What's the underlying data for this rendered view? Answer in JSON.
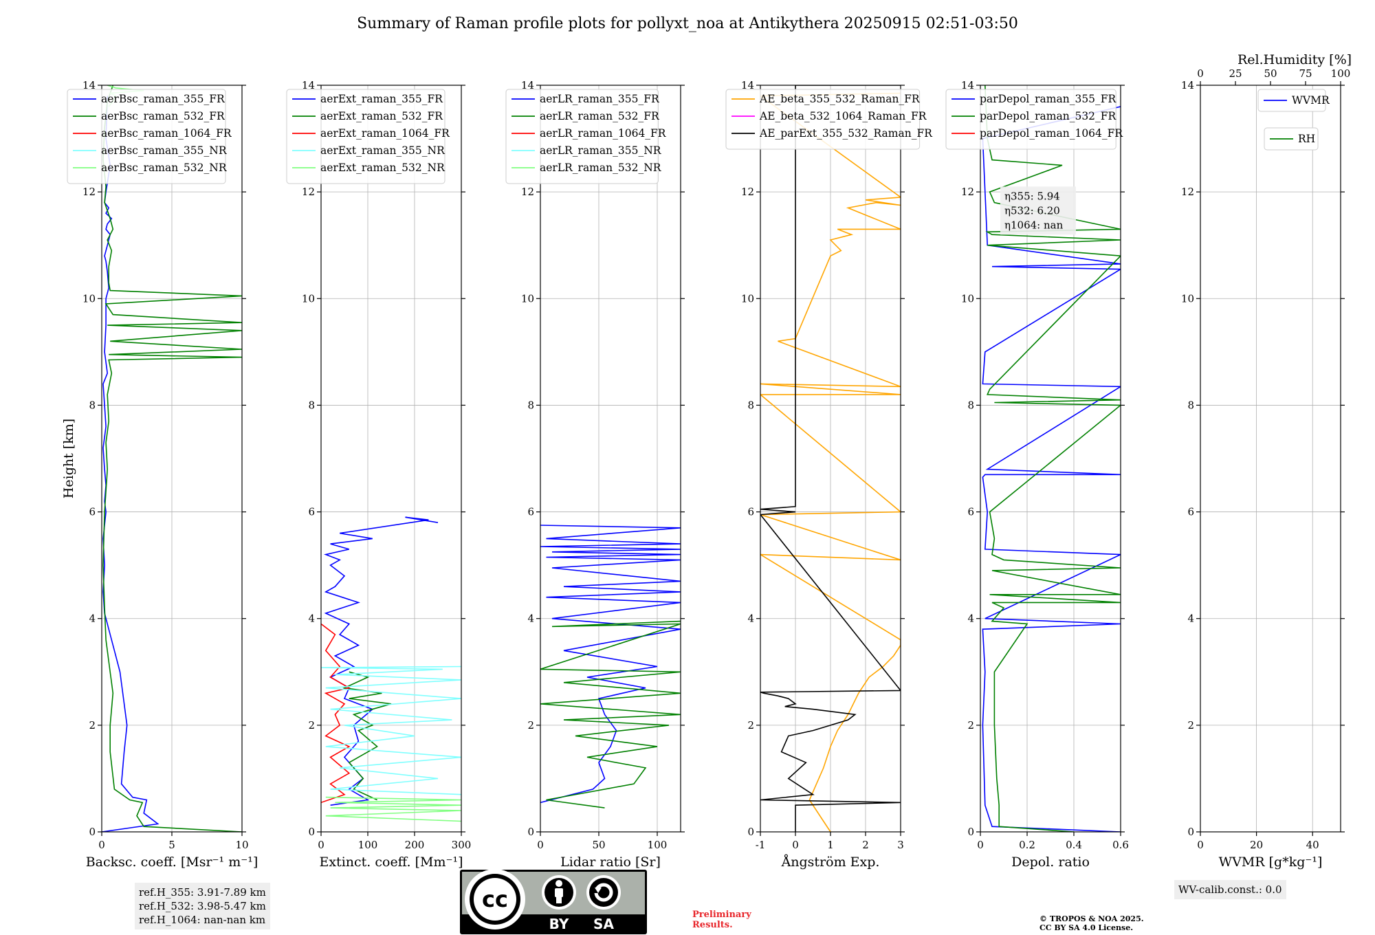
{
  "title": "Summary of Raman profile plots for pollyxt_noa at Antikythera 20250915 02:51-03:50",
  "ref_heights": [
    "ref.H_355: 3.91-7.89 km",
    "ref.H_532: 3.98-5.47 km",
    "ref.H_1064: nan-nan km"
  ],
  "wv_calib": "WV-calib.const.: 0.0",
  "preliminary": [
    "Preliminary",
    "Results."
  ],
  "copyright": [
    "© TROPOS & NOA 2025.",
    "CC BY SA 4.0 License."
  ],
  "license_logo": {
    "cc": "cc",
    "by": "BY",
    "sa": "SA"
  },
  "colors": {
    "blue": "#0000ff",
    "green": "#008000",
    "red": "#ff0000",
    "cyan": "#80ffff",
    "lightgreen": "#80ff80",
    "orange": "#ffa500",
    "magenta": "#ff00ff",
    "black": "#000000",
    "grid": "#b0b0b0"
  },
  "chart_data": [
    {
      "type": "line",
      "id": "bsc",
      "xlabel": "Backsc. coeff. [Msr⁻¹ m⁻¹]",
      "ylabel": "Height [km]",
      "xlim": [
        0,
        10
      ],
      "ylim": [
        0,
        14
      ],
      "xticks": [
        0,
        5,
        10
      ],
      "yticks": [
        0,
        2,
        4,
        6,
        8,
        10,
        12,
        14
      ],
      "legend": "top-left",
      "series": [
        {
          "name": "aerBsc_raman_355_FR",
          "color": "blue",
          "x": [
            0,
            4,
            3,
            3.2,
            2.2,
            1.4,
            1.6,
            1.8,
            1.5,
            1.3,
            0.9,
            0.5,
            0.2,
            0.1,
            0.2,
            0.1,
            0.3,
            0.2,
            0.3,
            0.2,
            0.1,
            0.3,
            0.2,
            0.1,
            0.4,
            0.2,
            0.3,
            0.3,
            0.5,
            0.4,
            0.3,
            0.2,
            0.4,
            0.6,
            0.3,
            0.4,
            0.7,
            0.3,
            0.5,
            0.2,
            0.3,
            0.6,
            0.3,
            0.4
          ],
          "y": [
            0,
            0.15,
            0.35,
            0.6,
            0.65,
            0.9,
            1.5,
            2,
            2.6,
            3,
            3.4,
            3.8,
            4.1,
            4.5,
            5,
            5.5,
            6,
            6.2,
            6.5,
            6.8,
            7.2,
            7.6,
            8,
            8.4,
            8.6,
            9,
            9.5,
            10,
            10.2,
            10.5,
            10.7,
            10.8,
            11,
            11.2,
            11.3,
            11.4,
            11.5,
            11.6,
            11.7,
            11.8,
            12,
            12.5,
            13,
            13.8
          ]
        },
        {
          "name": "aerBsc_raman_532_FR",
          "color": "green",
          "x": [
            10,
            3,
            2.5,
            2.9,
            2,
            0.9,
            0.6,
            0.6,
            0.8,
            0.6,
            0.3,
            0.2,
            0.1,
            0.2,
            0.4,
            0.3,
            0.5,
            0.4,
            0.7,
            0.5,
            10,
            0.5,
            10,
            0.6,
            10,
            0.4,
            10,
            0.8,
            0.3,
            10,
            0.6,
            0.5,
            0.5,
            0.7,
            0.4,
            0.8,
            0.6,
            0.2,
            0.3,
            0.1,
            0.2,
            0.4,
            0.8
          ],
          "y": [
            0,
            0.1,
            0.3,
            0.55,
            0.6,
            0.8,
            1.5,
            2,
            2.6,
            3,
            3.6,
            4.2,
            5,
            6,
            6.8,
            7.3,
            7.7,
            8.2,
            8.6,
            8.85,
            8.9,
            8.95,
            9.05,
            9.2,
            9.4,
            9.5,
            9.55,
            9.7,
            9.9,
            10.05,
            10.15,
            10.3,
            10.6,
            10.9,
            11.1,
            11.3,
            11.5,
            11.8,
            12.1,
            12.6,
            13.2,
            13.7,
            14
          ]
        },
        {
          "name": "aerBsc_raman_1064_FR",
          "color": "red",
          "x": [],
          "y": []
        },
        {
          "name": "aerBsc_raman_355_NR",
          "color": "cyan",
          "x": [],
          "y": []
        },
        {
          "name": "aerBsc_raman_532_NR",
          "color": "lightgreen",
          "x": [
            0.5,
            0.8,
            1,
            0.6,
            3,
            1,
            0.4
          ],
          "y": [
            13.6,
            13.7,
            13.8,
            13.85,
            13.9,
            13.95,
            14
          ]
        }
      ],
      "info": "ref_heights"
    },
    {
      "type": "line",
      "id": "ext",
      "xlabel": "Extinct. coeff. [Mm⁻¹]",
      "ylabel": "",
      "xlim": [
        0,
        300
      ],
      "ylim": [
        0,
        14
      ],
      "xticks": [
        0,
        100,
        200,
        300
      ],
      "yticks": [
        0,
        2,
        4,
        6,
        8,
        10,
        12,
        14
      ],
      "legend": "top-left",
      "series": [
        {
          "name": "aerExt_raman_355_FR",
          "color": "blue",
          "x": [
            20,
            100,
            60,
            90,
            50,
            80,
            70,
            110,
            50,
            60,
            20,
            70,
            30,
            80,
            40,
            60,
            10,
            80,
            10,
            30,
            50,
            20,
            40,
            10,
            60,
            20,
            110,
            40,
            230,
            180,
            250
          ],
          "y": [
            0.5,
            0.6,
            0.8,
            1,
            1.4,
            1.7,
            2,
            2.3,
            2.5,
            2.7,
            2.9,
            3.1,
            3.3,
            3.5,
            3.7,
            3.9,
            4.1,
            4.3,
            4.5,
            4.6,
            4.8,
            5,
            5.1,
            5.2,
            5.3,
            5.4,
            5.5,
            5.6,
            5.85,
            5.9,
            5.8
          ]
        },
        {
          "name": "aerExt_raman_532_FR",
          "color": "green",
          "x": [
            120,
            70,
            90,
            60,
            120,
            80,
            110,
            70,
            150,
            60,
            130,
            50,
            100,
            60
          ],
          "y": [
            0.6,
            0.8,
            1,
            1.3,
            1.6,
            1.9,
            2,
            2.2,
            2.4,
            2.5,
            2.6,
            2.7,
            2.9,
            3
          ]
        },
        {
          "name": "aerExt_raman_1064_FR",
          "color": "red",
          "x": [
            0,
            50,
            20,
            60,
            20,
            60,
            10,
            40,
            30,
            50,
            10,
            60,
            20,
            40,
            10,
            30,
            0
          ],
          "y": [
            0.55,
            0.7,
            0.9,
            1.1,
            1.4,
            1.6,
            1.8,
            2,
            2.2,
            2.4,
            2.6,
            2.7,
            2.9,
            3.1,
            3.4,
            3.7,
            3.9
          ]
        },
        {
          "name": "aerExt_raman_355_NR",
          "color": "cyan",
          "x": [
            300,
            20,
            250,
            40,
            300,
            10,
            200,
            50,
            280,
            20,
            300,
            10,
            300,
            30,
            260,
            0,
            300
          ],
          "y": [
            0.7,
            0.8,
            1,
            1.2,
            1.4,
            1.6,
            1.8,
            2,
            2.1,
            2.3,
            2.5,
            2.7,
            2.85,
            2.95,
            3.05,
            3.08,
            3.1
          ]
        },
        {
          "name": "aerExt_raman_532_NR",
          "color": "lightgreen",
          "x": [
            300,
            10,
            300,
            20,
            300,
            30,
            300,
            10
          ],
          "y": [
            0.2,
            0.3,
            0.4,
            0.45,
            0.5,
            0.55,
            0.6,
            0.65
          ]
        }
      ]
    },
    {
      "type": "line",
      "id": "lr",
      "xlabel": "Lidar ratio [Sr]",
      "ylabel": "",
      "xlim": [
        0,
        120
      ],
      "ylim": [
        0,
        14
      ],
      "xticks": [
        0,
        50,
        100
      ],
      "yticks": [
        0,
        2,
        4,
        6,
        8,
        10,
        12,
        14
      ],
      "legend": "top-left",
      "series": [
        {
          "name": "aerLR_raman_355_FR",
          "color": "blue",
          "x": [
            0,
            45,
            55,
            50,
            60,
            65,
            55,
            50,
            90,
            40,
            100,
            20,
            120,
            10,
            120,
            5,
            120,
            20,
            120,
            10,
            120,
            5,
            120,
            10,
            120,
            0,
            120,
            5,
            120,
            0
          ],
          "y": [
            0.55,
            0.8,
            1,
            1.3,
            1.6,
            1.9,
            2.2,
            2.5,
            2.7,
            2.9,
            3.1,
            3.4,
            3.8,
            4,
            4.3,
            4.4,
            4.5,
            4.6,
            4.7,
            4.95,
            5.1,
            5.15,
            5.2,
            5.25,
            5.3,
            5.35,
            5.4,
            5.5,
            5.7,
            5.75
          ]
        },
        {
          "name": "aerLR_raman_532_FR",
          "color": "green",
          "x": [
            55,
            5,
            80,
            90,
            40,
            100,
            30,
            110,
            20,
            120,
            0,
            120,
            20,
            120,
            0,
            120,
            10,
            120
          ],
          "y": [
            0.45,
            0.6,
            0.9,
            1.2,
            1.4,
            1.6,
            1.8,
            2,
            2.1,
            2.2,
            2.4,
            2.6,
            2.8,
            3,
            3.05,
            3.9,
            3.85,
            3.95
          ]
        },
        {
          "name": "aerLR_raman_1064_FR",
          "color": "red",
          "x": [],
          "y": []
        },
        {
          "name": "aerLR_raman_355_NR",
          "color": "cyan",
          "x": [],
          "y": []
        },
        {
          "name": "aerLR_raman_532_NR",
          "color": "lightgreen",
          "x": [],
          "y": []
        }
      ]
    },
    {
      "type": "line",
      "id": "ang",
      "xlabel": "Ångström Exp.",
      "ylabel": "",
      "xlim": [
        -1,
        3
      ],
      "ylim": [
        0,
        14
      ],
      "xticks": [
        -1,
        0,
        1,
        2,
        3
      ],
      "yticks": [
        0,
        2,
        4,
        6,
        8,
        10,
        12,
        14
      ],
      "legend": "top-left",
      "series": [
        {
          "name": "AE_beta_355_532_Raman_FR",
          "color": "orange",
          "x": [
            1,
            0.8,
            0.6,
            0.4,
            0.6,
            0.8,
            1,
            1.2,
            1.5,
            1.8,
            2.1,
            2.5,
            2.8,
            3,
            3,
            -1,
            3,
            -1,
            3,
            -1,
            3,
            -1,
            3,
            -0.5,
            0,
            1,
            1.3,
            1,
            1.6,
            1.2,
            3,
            1.5,
            2.3,
            3,
            2,
            3,
            -1,
            3
          ],
          "y": [
            0,
            0.2,
            0.4,
            0.6,
            0.9,
            1.2,
            1.6,
            1.9,
            2.2,
            2.6,
            2.9,
            3.1,
            3.3,
            3.5,
            3.6,
            5.2,
            5.1,
            5.95,
            6,
            8.2,
            8.2,
            8.4,
            8.35,
            9.2,
            9.25,
            10.8,
            10.9,
            11.1,
            11.2,
            11.3,
            11.3,
            11.7,
            11.8,
            11.75,
            11.85,
            11.9,
            13.8,
            13.85
          ]
        },
        {
          "name": "AE_beta_532_1064_Raman_FR",
          "color": "magenta",
          "x": [],
          "y": []
        },
        {
          "name": "AE_parExt_355_532_Raman_FR",
          "color": "black",
          "x": [
            0,
            0,
            3,
            -1,
            0.5,
            -0.2,
            0.3,
            -0.4,
            -0.2,
            0.5,
            1.5,
            1.7,
            0.5,
            -0.3,
            0,
            -0.2,
            -0.5,
            -0.9,
            -1,
            3,
            -1,
            0,
            -1,
            0,
            0,
            3
          ],
          "y": [
            0,
            0.5,
            0.55,
            0.6,
            0.7,
            1,
            1.3,
            1.5,
            1.8,
            1.9,
            2.1,
            2.2,
            2.3,
            2.35,
            2.4,
            2.5,
            2.55,
            2.6,
            2.62,
            2.65,
            5.95,
            6,
            6.05,
            6.1,
            14,
            14
          ]
        }
      ]
    },
    {
      "type": "line",
      "id": "depol",
      "xlabel": "Depol. ratio",
      "ylabel": "",
      "xlim": [
        0,
        0.6
      ],
      "ylim": [
        0,
        14
      ],
      "xticks": [
        0.0,
        0.2,
        0.4,
        0.6
      ],
      "yticks": [
        0,
        2,
        4,
        6,
        8,
        10,
        12,
        14
      ],
      "legend": "top-left",
      "annotation": [
        "η355: 5.94",
        "η532: 6.20",
        "η1064: nan"
      ],
      "series": [
        {
          "name": "parDepol_raman_355_FR",
          "color": "blue",
          "x": [
            0.6,
            0.05,
            0.02,
            0.01,
            0.02,
            0.01,
            0.6,
            0.02,
            0.6,
            0.02,
            0.03,
            0.01,
            0.02,
            0.6,
            0.03,
            0.6,
            0.01,
            0.02,
            0.6,
            0.05,
            0.6,
            0.03,
            0.02,
            0.01,
            0.6
          ],
          "y": [
            0,
            0.1,
            0.5,
            2,
            3,
            3.8,
            3.9,
            4,
            5.2,
            5.3,
            6,
            6.65,
            6.7,
            6.7,
            6.8,
            8.35,
            8.4,
            9,
            10.55,
            10.6,
            10.65,
            11,
            12,
            13,
            13.6
          ]
        },
        {
          "name": "parDepol_raman_532_FR",
          "color": "green",
          "x": [
            0.4,
            0.08,
            0.08,
            0.07,
            0.06,
            0.06,
            0.2,
            0.05,
            0.1,
            0.05,
            0.6,
            0.04,
            0.6,
            0.05,
            0.6,
            0.1,
            0.05,
            0.06,
            0.04,
            0.6,
            0.06,
            0.6,
            0.03,
            0.04,
            0.6,
            0.03,
            0.6,
            0.05,
            0.03,
            0.6,
            0.06,
            0.04,
            0.35,
            0.05,
            0.03,
            0.02
          ],
          "y": [
            0,
            0.1,
            0.5,
            1,
            2,
            3,
            3.9,
            3.95,
            4.2,
            4.3,
            4.3,
            4.45,
            4.45,
            4.9,
            4.95,
            5.1,
            5.2,
            5.5,
            6,
            8.0,
            8.05,
            8.1,
            8.2,
            8.3,
            10.8,
            11,
            11.1,
            11.2,
            11.25,
            11.3,
            11.8,
            12,
            12.5,
            12.6,
            13,
            14
          ]
        },
        {
          "name": "parDepol_raman_1064_FR",
          "color": "red",
          "x": [],
          "y": []
        }
      ]
    },
    {
      "type": "line",
      "id": "wv",
      "xlabel": "WVMR [g*kg⁻¹]",
      "ylabel": "",
      "xlim": [
        0,
        50
      ],
      "ylim": [
        0,
        14
      ],
      "xticks": [
        0,
        20,
        40
      ],
      "yticks": [
        0,
        2,
        4,
        6,
        8,
        10,
        12,
        14
      ],
      "top_axis": {
        "label": "Rel.Humidity [%]",
        "xlim": [
          0,
          100
        ],
        "xticks": [
          0,
          25,
          50,
          75,
          100
        ]
      },
      "legend": "top-right",
      "series": [
        {
          "name": "WVMR",
          "color": "blue",
          "x": [],
          "y": []
        },
        {
          "name": "RH",
          "color": "green",
          "x": [],
          "y": []
        }
      ],
      "info": "wv_calib"
    }
  ]
}
